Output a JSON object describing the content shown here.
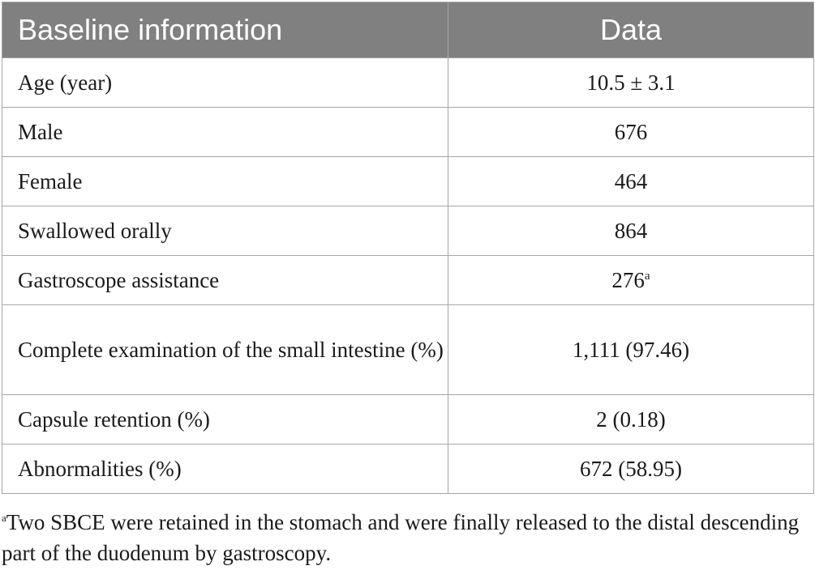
{
  "table": {
    "headers": {
      "col1": "Baseline information",
      "col2": "Data"
    },
    "rows": [
      {
        "label": "Age (year)",
        "value": "10.5 ± 3.1",
        "sup": ""
      },
      {
        "label": "Male",
        "value": "676",
        "sup": ""
      },
      {
        "label": "Female",
        "value": "464",
        "sup": ""
      },
      {
        "label": "Swallowed orally",
        "value": "864",
        "sup": ""
      },
      {
        "label": "Gastroscope assistance",
        "value": "276",
        "sup": "a"
      },
      {
        "label": "Complete examination of the small intestine (%)",
        "value": "1,111 (97.46)",
        "sup": ""
      },
      {
        "label": "Capsule retention (%)",
        "value": "2 (0.18)",
        "sup": ""
      },
      {
        "label": "Abnormalities (%)",
        "value": "672 (58.95)",
        "sup": ""
      }
    ]
  },
  "footnote": {
    "marker": "a",
    "text": "Two SBCE were retained in the stomach and were finally released to the distal descending part of the duodenum by gastroscopy."
  },
  "colors": {
    "header_bg": "#808080",
    "header_text": "#ffffff",
    "border": "#a6a6a6",
    "body_text": "#1a1a1a"
  }
}
